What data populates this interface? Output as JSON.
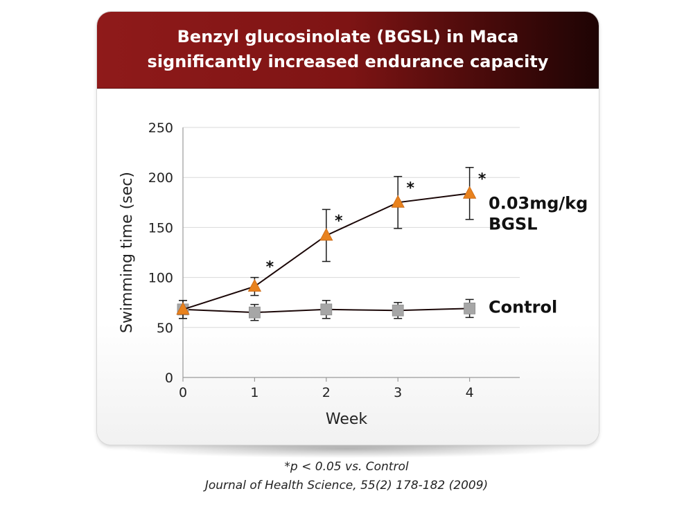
{
  "header": {
    "title_line1": "Benzyl glucosinolate (BGSL) in Maca",
    "title_line2": "significantly increased endurance capacity"
  },
  "footnotes": {
    "significance": "*p < 0.05 vs. Control",
    "citation": "Journal of Health Science, 55(2) 178-182 (2009)"
  },
  "colors": {
    "header_red": "#8f1a1a",
    "bgsl_marker": "#e8821e",
    "control_marker": "#a6a6a6",
    "line": "#1a0606"
  },
  "chart_data": {
    "type": "line",
    "xlabel": "Week",
    "ylabel": "Swimming time (sec)",
    "x": [
      0,
      1,
      2,
      3,
      4
    ],
    "xlim": [
      0,
      4.7
    ],
    "ylim": [
      0,
      250
    ],
    "yticks": [
      0,
      50,
      100,
      150,
      200,
      250
    ],
    "xticks": [
      0,
      1,
      2,
      3,
      4
    ],
    "grid": "horizontal",
    "series": [
      {
        "name": "0.03mg/kg BGSL",
        "label_lines": [
          "0.03mg/kg",
          "BGSL"
        ],
        "marker": "triangle",
        "values": [
          68,
          91,
          142,
          175,
          184
        ],
        "error": [
          9,
          9,
          26,
          26,
          26
        ],
        "significance": [
          "",
          "*",
          "*",
          "*",
          "*"
        ]
      },
      {
        "name": "Control",
        "label_lines": [
          "Control"
        ],
        "marker": "square",
        "values": [
          68,
          65,
          68,
          67,
          69
        ],
        "error": [
          9,
          8,
          9,
          8,
          9
        ],
        "significance": [
          "",
          "",
          "",
          "",
          ""
        ]
      }
    ]
  }
}
